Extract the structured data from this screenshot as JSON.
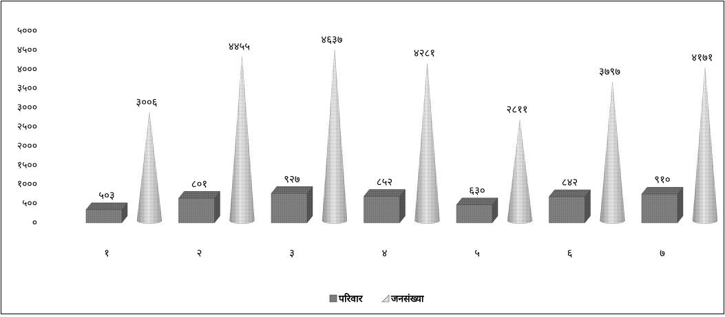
{
  "chart_data": {
    "type": "bar",
    "categories": [
      "१",
      "२",
      "३",
      "४",
      "५",
      "६",
      "७"
    ],
    "series": [
      {
        "name": "परिवार",
        "values": [
          503,
          801,
          927,
          852,
          630,
          842,
          910
        ],
        "labels": [
          "५०३",
          "८०१",
          "९२७",
          "८५२",
          "६३०",
          "८४२",
          "९१०"
        ],
        "shape": "box",
        "color": "#7a7a7a"
      },
      {
        "name": "जनसंख्या",
        "values": [
          3006,
          4455,
          4637,
          4281,
          2811,
          3797,
          4171
        ],
        "labels": [
          "३००६",
          "४४५५",
          "४६३७",
          "४२८१",
          "२८११",
          "३७९७",
          "४१७१"
        ],
        "shape": "cone",
        "color": "#cfcfcf"
      }
    ],
    "ylim": [
      0,
      5000
    ],
    "yticks": [
      "०",
      "५००",
      "१०००",
      "१५००",
      "२०००",
      "२५००",
      "३०००",
      "३५००",
      "४०००",
      "४५००",
      "५०००"
    ],
    "grid": false,
    "legend_position": "bottom"
  }
}
